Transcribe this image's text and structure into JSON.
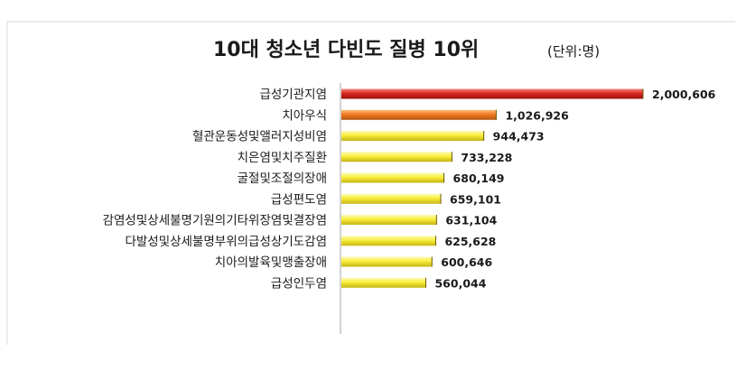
{
  "chart_data": {
    "type": "bar",
    "orientation": "horizontal",
    "title": "10대 청소년 다빈도 질병 10위",
    "unit_note": "(단위:명)",
    "categories": [
      "급성기관지염",
      "치아우식",
      "혈관운동성및앨러지성비염",
      "치은염및치주질환",
      "굴절및조절의장애",
      "급성편도염",
      "감염성및상세불명기원의기타위장염및결장염",
      "다발성및상세불명부위의급성상기도감염",
      "치아의발육및맹출장애",
      "급성인두염"
    ],
    "values": [
      2000606,
      1026926,
      944473,
      733228,
      680149,
      659101,
      631104,
      625628,
      600646,
      560044
    ],
    "value_labels": [
      "2,000,606",
      "1,026,926",
      "944,473",
      "733,228",
      "680,149",
      "659,101",
      "631,104",
      "625,628",
      "600,646",
      "560,044"
    ],
    "bar_colors": [
      "#d8261f",
      "#f07a21",
      "#f8ee3a",
      "#f8ee3a",
      "#f8ee3a",
      "#f8ee3a",
      "#f8ee3a",
      "#f8ee3a",
      "#f8ee3a",
      "#f8ee3a"
    ],
    "xlim": [
      0,
      2000606
    ],
    "grid": false,
    "legend": "none"
  }
}
